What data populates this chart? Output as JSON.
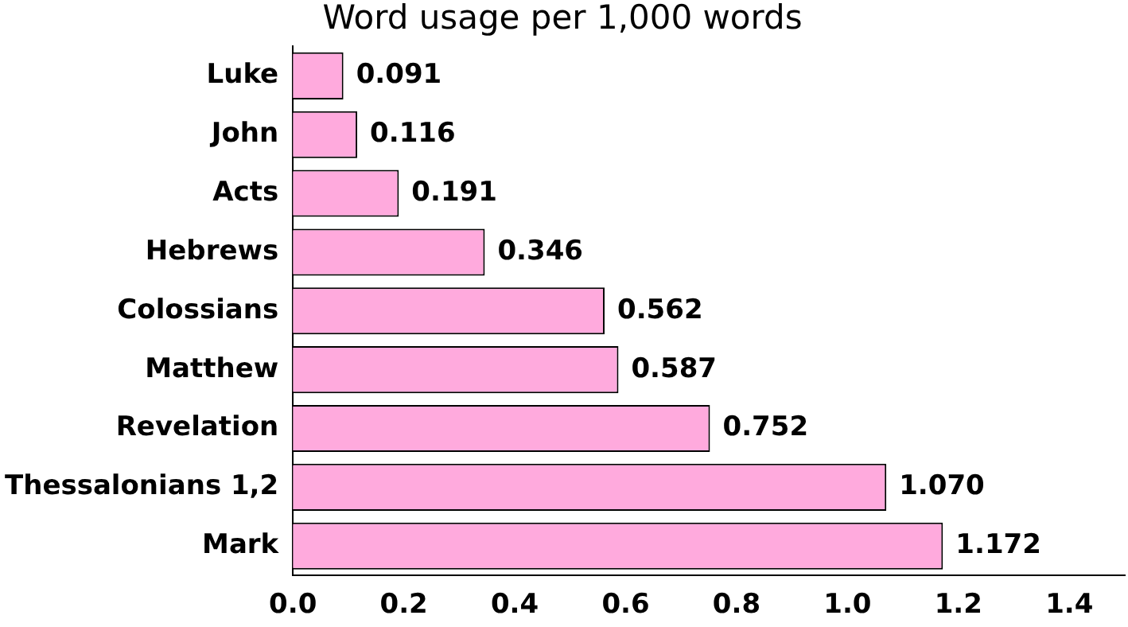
{
  "chart_data": {
    "type": "bar",
    "orientation": "horizontal",
    "title": "Word usage per 1,000 words",
    "categories": [
      "Luke",
      "John",
      "Acts",
      "Hebrews",
      "Colossians",
      "Matthew",
      "Revelation",
      "Thessalonians 1,2",
      "Mark"
    ],
    "values": [
      0.091,
      0.116,
      0.191,
      0.346,
      0.562,
      0.587,
      0.752,
      1.07,
      1.172
    ],
    "value_labels": [
      "0.091",
      "0.116",
      "0.191",
      "0.346",
      "0.562",
      "0.587",
      "0.752",
      "1.070",
      "1.172"
    ],
    "color": "#ffaadd",
    "xlim": [
      0,
      1.5
    ],
    "xticks": [
      {
        "value": 0,
        "label": "0.0"
      },
      {
        "value": 0.2,
        "label": "0.2"
      },
      {
        "value": 0.4,
        "label": "0.4"
      },
      {
        "value": 0.6,
        "label": "0.6"
      },
      {
        "value": 0.8,
        "label": "0.8"
      },
      {
        "value": 1,
        "label": "1.0"
      },
      {
        "value": 1.2,
        "label": "1.2"
      },
      {
        "value": 1.4,
        "label": "1.4"
      }
    ],
    "grid": false,
    "legend": false
  }
}
